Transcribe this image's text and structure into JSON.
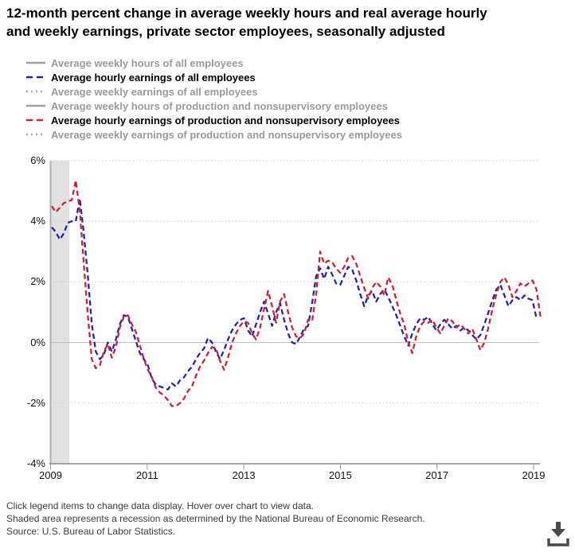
{
  "title_lines": [
    "12-month percent change in average weekly hours and real average hourly",
    "and weekly earnings, private sector employees, seasonally adjusted"
  ],
  "legend": {
    "items": [
      {
        "key": "weekly-hours-all",
        "label": "Average weekly hours of all employees",
        "style": "solid",
        "color": "#a0a0a0",
        "state": "inactive"
      },
      {
        "key": "hourly-earnings-all",
        "label": "Average hourly earnings of all employees",
        "style": "dashed",
        "color": "#2424ad",
        "state": "active"
      },
      {
        "key": "weekly-earnings-all",
        "label": "Average weekly earnings of all employees",
        "style": "dotted",
        "color": "#a0a0a0",
        "state": "inactive"
      },
      {
        "key": "weekly-hours-prod",
        "label": "Average weekly hours of production and nonsupervisory employees",
        "style": "solid",
        "color": "#a0a0a0",
        "state": "inactive"
      },
      {
        "key": "hourly-earnings-prod",
        "label": "Average hourly earnings of production and nonsupervisory employees",
        "style": "dashed",
        "color": "#cc2433",
        "state": "active"
      },
      {
        "key": "weekly-earnings-prod",
        "label": "Average weekly earnings of production and nonsupervisory employees",
        "style": "dotted",
        "color": "#a0a0a0",
        "state": "inactive"
      }
    ]
  },
  "chart_data": {
    "type": "line",
    "x_start": "2009-01",
    "x_frequency": "monthly",
    "x_tick_labels": [
      "2009",
      "2011",
      "2013",
      "2015",
      "2017",
      "2019"
    ],
    "y_ticks": [
      {
        "label": "6%",
        "value": 6
      },
      {
        "label": "4%",
        "value": 4
      },
      {
        "label": "2%",
        "value": 2
      },
      {
        "label": "0%",
        "value": 0
      },
      {
        "label": "-2%",
        "value": -2
      },
      {
        "label": "-4%",
        "value": -4
      }
    ],
    "ylim": [
      -4,
      6
    ],
    "grid": "horizontal-dotted, zero-line-solid",
    "recession_band": {
      "start": "2009-01",
      "end": "2009-06"
    },
    "hidden_series": [
      "Average weekly hours of all employees",
      "Average weekly earnings of all employees",
      "Average weekly hours of production and nonsupervisory employees",
      "Average weekly earnings of production and nonsupervisory employees"
    ],
    "series": [
      {
        "name": "Average hourly earnings of all employees",
        "color": "#2424ad",
        "line_style": "dashed",
        "values": [
          3.8,
          3.65,
          3.4,
          3.6,
          3.95,
          4.0,
          4.0,
          4.75,
          3.6,
          2.2,
          0.6,
          -0.3,
          -0.55,
          -0.4,
          0.0,
          -0.3,
          0.1,
          0.6,
          0.9,
          0.85,
          0.45,
          0.05,
          -0.35,
          -0.55,
          -0.75,
          -1.2,
          -1.4,
          -1.45,
          -1.5,
          -1.55,
          -1.35,
          -1.45,
          -1.25,
          -1.15,
          -0.95,
          -0.8,
          -0.55,
          -0.35,
          -0.2,
          0.15,
          0.0,
          -0.3,
          -0.55,
          -0.25,
          0.1,
          0.4,
          0.6,
          0.75,
          0.8,
          0.4,
          0.2,
          0.6,
          1.0,
          1.35,
          0.95,
          0.55,
          1.0,
          1.3,
          0.75,
          0.3,
          0.0,
          -0.05,
          0.2,
          0.45,
          0.55,
          1.3,
          2.2,
          2.45,
          2.1,
          2.5,
          2.25,
          1.95,
          1.9,
          2.2,
          2.5,
          2.4,
          2.05,
          1.6,
          1.2,
          1.55,
          1.7,
          1.35,
          1.6,
          1.75,
          1.5,
          1.2,
          0.9,
          0.55,
          0.2,
          -0.1,
          0.3,
          0.6,
          0.8,
          0.75,
          0.85,
          0.6,
          0.4,
          0.6,
          0.75,
          0.6,
          0.45,
          0.55,
          0.4,
          0.5,
          0.4,
          0.25,
          0.1,
          0.25,
          0.6,
          1.0,
          1.4,
          1.75,
          1.9,
          1.55,
          1.2,
          1.4,
          1.5,
          1.4,
          1.55,
          1.45,
          1.4,
          0.8
        ]
      },
      {
        "name": "Average hourly earnings of production and nonsupervisory employees",
        "color": "#cc2433",
        "line_style": "dashed",
        "values": [
          4.5,
          4.3,
          4.45,
          4.6,
          4.65,
          4.7,
          5.35,
          4.35,
          2.6,
          0.9,
          -0.55,
          -0.85,
          -0.75,
          -0.3,
          -0.05,
          -0.5,
          -0.15,
          0.5,
          0.85,
          0.9,
          0.6,
          0.35,
          -0.1,
          -0.55,
          -0.9,
          -1.15,
          -1.5,
          -1.65,
          -1.75,
          -1.9,
          -2.1,
          -2.1,
          -2.0,
          -1.85,
          -1.6,
          -1.45,
          -1.1,
          -0.8,
          -0.6,
          -0.35,
          -0.15,
          -0.2,
          -0.6,
          -0.9,
          -0.5,
          0.0,
          0.3,
          0.55,
          0.7,
          0.65,
          0.3,
          0.1,
          0.5,
          1.1,
          1.7,
          1.2,
          0.65,
          1.35,
          1.6,
          1.0,
          0.5,
          0.2,
          0.15,
          0.3,
          0.75,
          0.7,
          1.6,
          3.0,
          2.6,
          2.7,
          2.65,
          2.45,
          2.3,
          2.5,
          2.8,
          2.85,
          2.6,
          2.2,
          1.8,
          1.45,
          1.8,
          2.0,
          1.85,
          1.55,
          2.15,
          1.9,
          1.4,
          0.95,
          0.6,
          0.0,
          -0.35,
          0.2,
          0.55,
          0.7,
          0.65,
          0.75,
          0.5,
          0.3,
          0.55,
          0.8,
          0.7,
          0.5,
          0.6,
          0.45,
          0.3,
          0.45,
          0.1,
          -0.25,
          0.0,
          0.5,
          1.1,
          1.6,
          2.0,
          2.15,
          1.9,
          1.5,
          1.7,
          1.95,
          1.85,
          1.95,
          2.05,
          1.75,
          0.85
        ]
      }
    ]
  },
  "footnotes": [
    "Click legend items to change data display. Hover over chart to view data.",
    "Shaded area represents a recession as determined by the National Bureau of Economic Research.",
    "Source: U.S. Bureau of Labor Statistics."
  ],
  "icons": {
    "download": "download-icon"
  }
}
